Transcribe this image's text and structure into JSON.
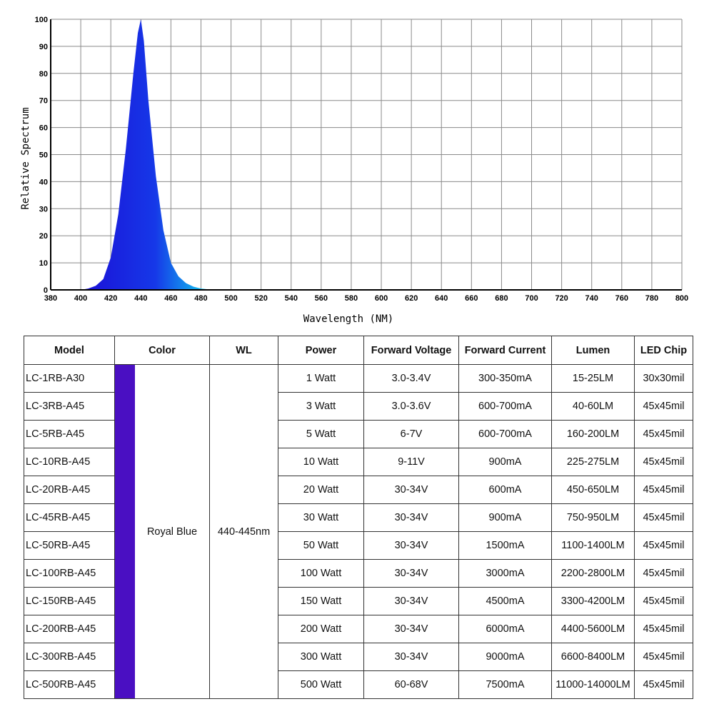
{
  "chart_data": {
    "type": "area",
    "xlabel": "Wavelength (NM)",
    "ylabel": "Relative Spectrum",
    "xlim": [
      380,
      800
    ],
    "ylim": [
      0,
      100
    ],
    "x_ticks": [
      380,
      400,
      420,
      440,
      460,
      480,
      500,
      520,
      540,
      560,
      580,
      600,
      620,
      640,
      660,
      680,
      700,
      720,
      740,
      760,
      780,
      800
    ],
    "y_ticks": [
      0,
      10,
      20,
      30,
      40,
      50,
      60,
      70,
      80,
      90,
      100
    ],
    "grid": true,
    "series": [
      {
        "x": [
          400,
          405,
          410,
          415,
          420,
          425,
          430,
          435,
          438,
          440,
          442,
          445,
          450,
          455,
          460,
          465,
          470,
          475,
          480,
          485,
          490
        ],
        "y": [
          0,
          0.5,
          1.5,
          4,
          12,
          28,
          52,
          80,
          95,
          100,
          92,
          70,
          42,
          22,
          10,
          5,
          2.5,
          1.2,
          0.5,
          0.2,
          0
        ]
      }
    ],
    "colors": {
      "fill_left": "#1b0fd6",
      "fill_mid": "#1638e8",
      "fill_right": "#10e0f0"
    }
  },
  "table": {
    "headers": [
      "Model",
      "Color",
      "WL",
      "Power",
      "Forward Voltage",
      "Forward Current",
      "Lumen",
      "LED Chip"
    ],
    "color_name": "Royal Blue",
    "color_swatch": "#4a0fc2",
    "wavelength": "440-445nm",
    "rows": [
      {
        "model": "LC-1RB-A30",
        "power": "1 Watt",
        "voltage": "3.0-3.4V",
        "current": "300-350mA",
        "lumen": "15-25LM",
        "chip": "30x30mil"
      },
      {
        "model": "LC-3RB-A45",
        "power": "3 Watt",
        "voltage": "3.0-3.6V",
        "current": "600-700mA",
        "lumen": "40-60LM",
        "chip": "45x45mil"
      },
      {
        "model": "LC-5RB-A45",
        "power": "5 Watt",
        "voltage": "6-7V",
        "current": "600-700mA",
        "lumen": "160-200LM",
        "chip": "45x45mil"
      },
      {
        "model": "LC-10RB-A45",
        "power": "10 Watt",
        "voltage": "9-11V",
        "current": "900mA",
        "lumen": "225-275LM",
        "chip": "45x45mil"
      },
      {
        "model": "LC-20RB-A45",
        "power": "20 Watt",
        "voltage": "30-34V",
        "current": "600mA",
        "lumen": "450-650LM",
        "chip": "45x45mil"
      },
      {
        "model": "LC-45RB-A45",
        "power": "30 Watt",
        "voltage": "30-34V",
        "current": "900mA",
        "lumen": "750-950LM",
        "chip": "45x45mil"
      },
      {
        "model": "LC-50RB-A45",
        "power": "50 Watt",
        "voltage": "30-34V",
        "current": "1500mA",
        "lumen": "1100-1400LM",
        "chip": "45x45mil"
      },
      {
        "model": "LC-100RB-A45",
        "power": "100 Watt",
        "voltage": "30-34V",
        "current": "3000mA",
        "lumen": "2200-2800LM",
        "chip": "45x45mil"
      },
      {
        "model": "LC-150RB-A45",
        "power": "150 Watt",
        "voltage": "30-34V",
        "current": "4500mA",
        "lumen": "3300-4200LM",
        "chip": "45x45mil"
      },
      {
        "model": "LC-200RB-A45",
        "power": "200 Watt",
        "voltage": "30-34V",
        "current": "6000mA",
        "lumen": "4400-5600LM",
        "chip": "45x45mil"
      },
      {
        "model": "LC-300RB-A45",
        "power": "300 Watt",
        "voltage": "30-34V",
        "current": "9000mA",
        "lumen": "6600-8400LM",
        "chip": "45x45mil"
      },
      {
        "model": "LC-500RB-A45",
        "power": "500 Watt",
        "voltage": "60-68V",
        "current": "7500mA",
        "lumen": "11000-14000LM",
        "chip": "45x45mil"
      }
    ]
  }
}
